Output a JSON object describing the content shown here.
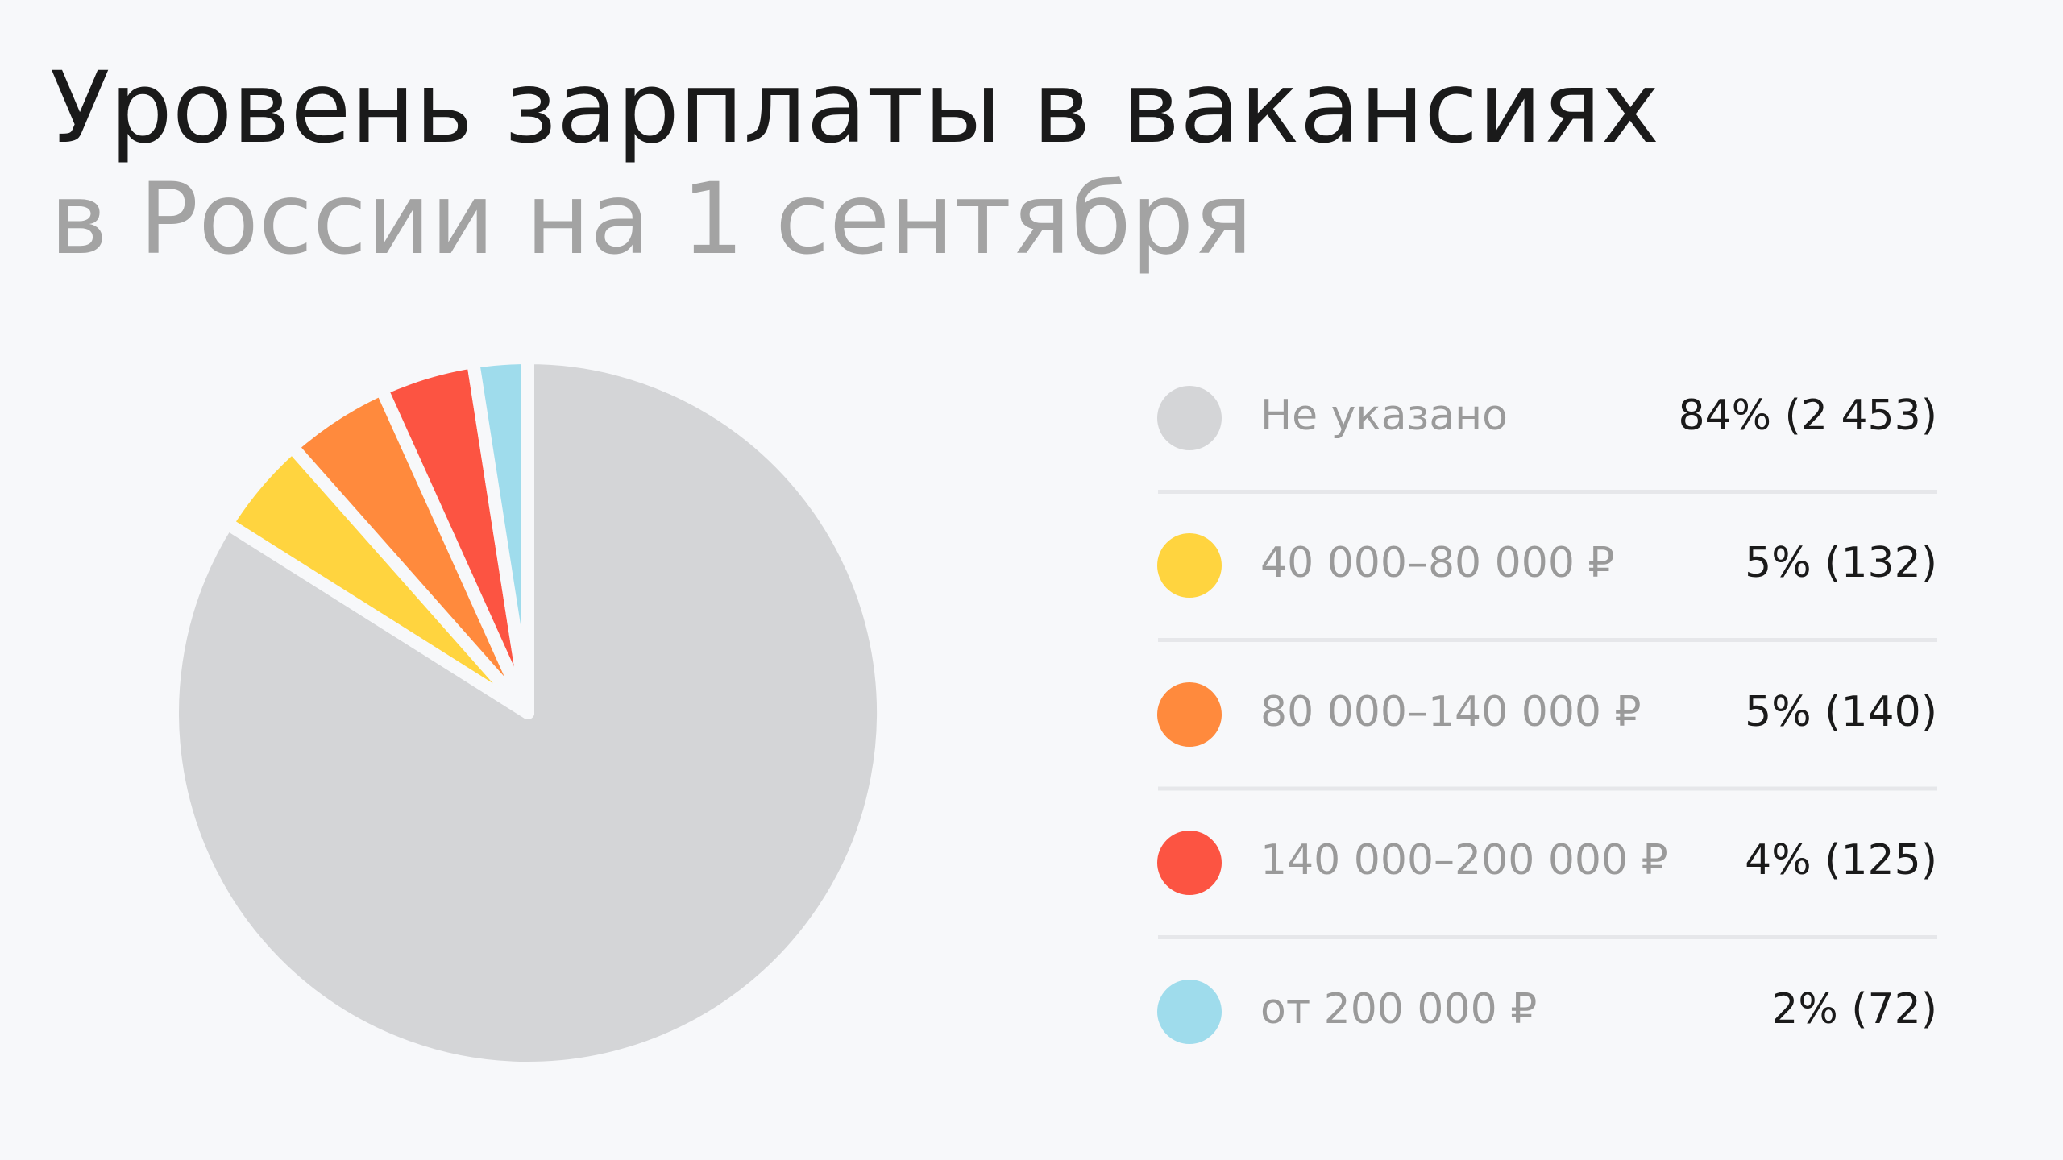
{
  "chart_data": {
    "type": "pie",
    "title": "Уровень зарплаты в вакансиях",
    "subtitle": "в России на 1 сентября",
    "categories": [
      "Не указано",
      "40 000–80 000 ₽",
      "80 000–140 000 ₽",
      "140 000–200 000 ₽",
      "от 200 000 ₽"
    ],
    "values": [
      2453,
      132,
      140,
      125,
      72
    ],
    "value_labels": [
      "84% (2 453)",
      "5% (132)",
      "5% (140)",
      "4% (125)",
      "2% (72)"
    ],
    "colors": [
      "#d4d5d7",
      "#ffd43f",
      "#ff8a3d",
      "#fc5442",
      "#9fdcec"
    ]
  }
}
